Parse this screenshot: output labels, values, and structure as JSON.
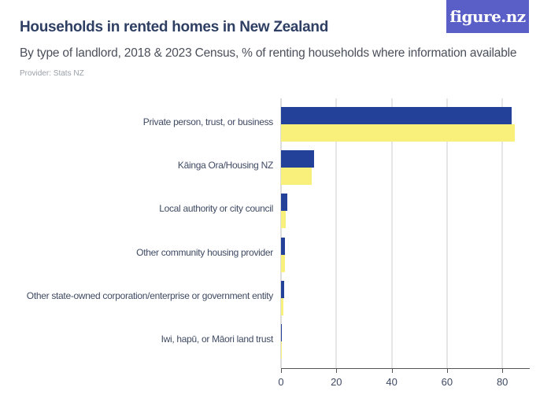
{
  "header": {
    "title": "Households in rented homes in New Zealand",
    "subtitle": "By type of landlord, 2018 & 2023 Census, % of renting households where information available",
    "provider": "Provider: Stats NZ",
    "logo": "figure.nz"
  },
  "colors": {
    "series_2018": "#24419a",
    "series_2023": "#f8f07a",
    "logo_bg": "#5a5fc8"
  },
  "chart_data": {
    "type": "bar",
    "orientation": "horizontal",
    "title": "Households in rented homes in New Zealand",
    "subtitle": "By type of landlord, 2018 & 2023 Census, % of renting households where information available",
    "xlabel": "",
    "ylabel": "",
    "xlim": [
      0,
      90
    ],
    "xticks": [
      0,
      20,
      40,
      60,
      80
    ],
    "grid": true,
    "legend": "none shown",
    "categories": [
      "Private person, trust, or business",
      "Kāinga Ora/Housing NZ",
      "Local authority or city council",
      "Other community housing provider",
      "Other state-owned corporation/enterprise or government entity",
      "Iwi, hapū, or Māori land trust"
    ],
    "series": [
      {
        "name": "2018",
        "color": "#24419a",
        "values": [
          83.4,
          11.9,
          2.2,
          1.3,
          1.0,
          0.3
        ]
      },
      {
        "name": "2023",
        "color": "#f8f07a",
        "values": [
          84.5,
          11.1,
          1.8,
          1.3,
          0.8,
          0.2
        ]
      }
    ]
  }
}
